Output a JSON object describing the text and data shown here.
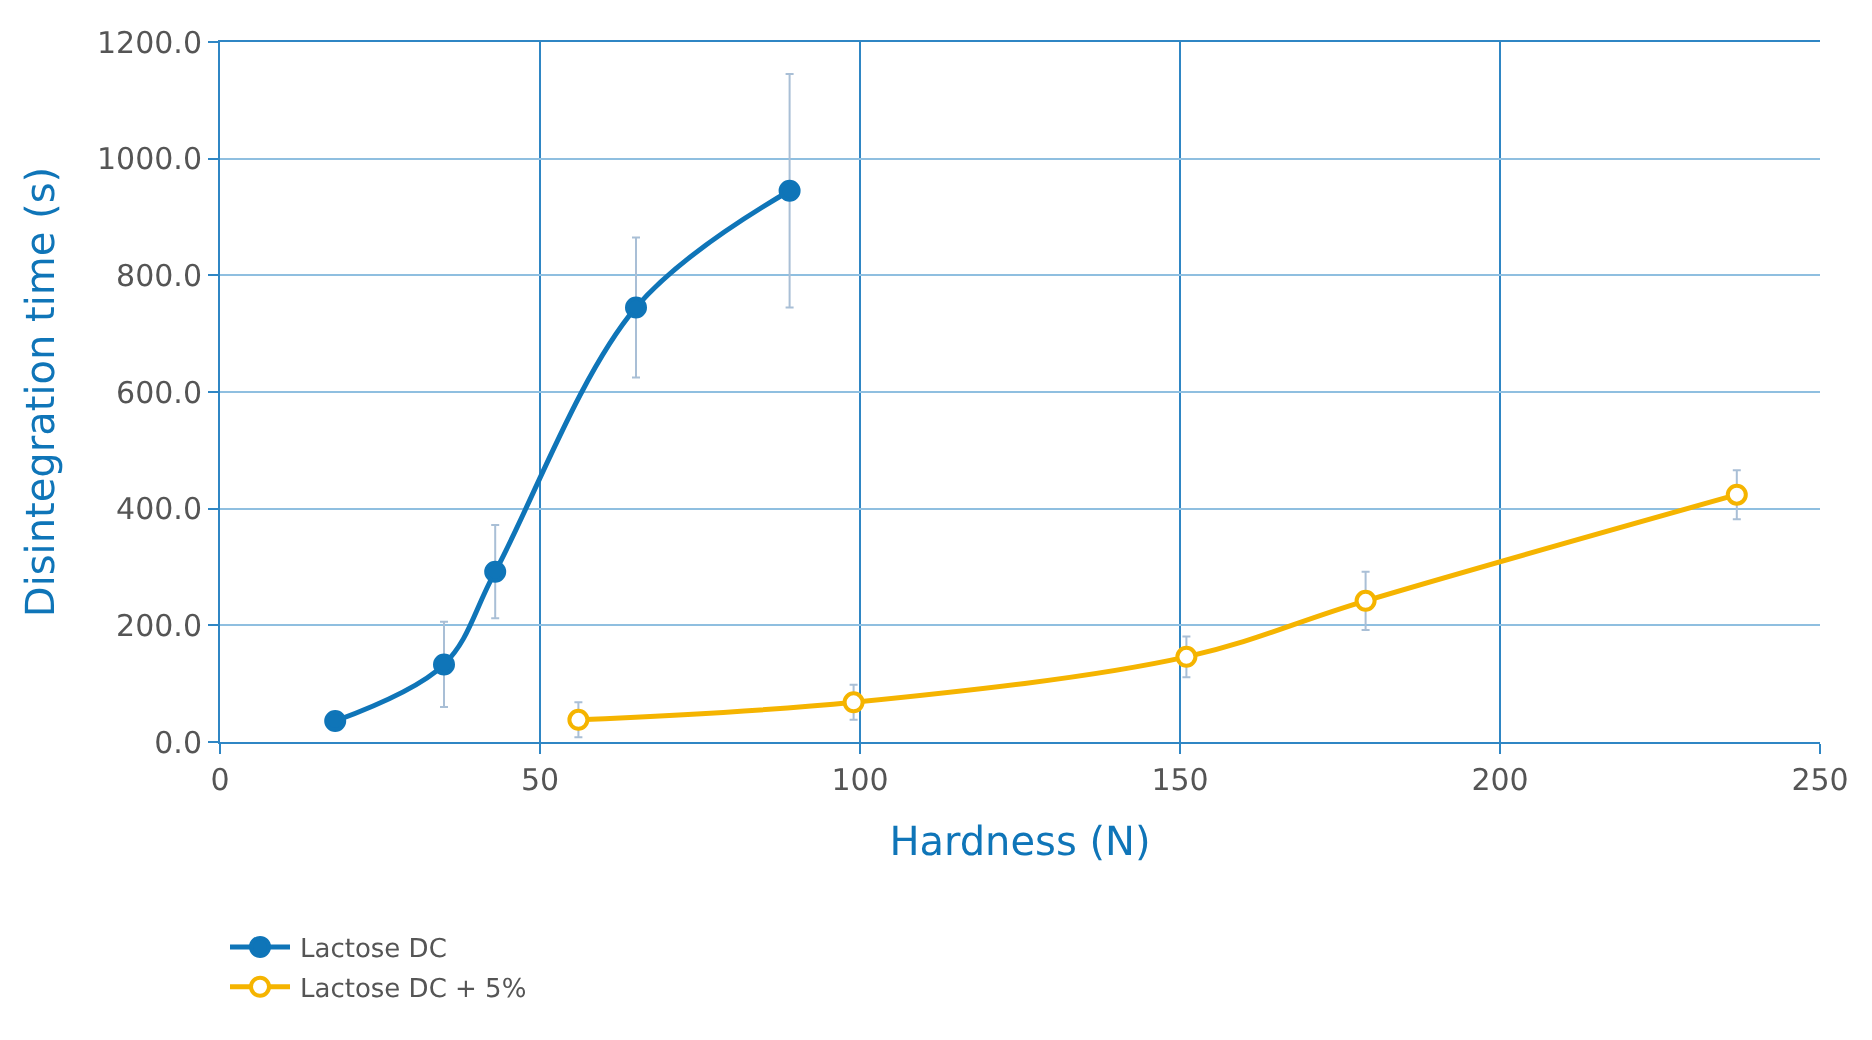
{
  "chart_data": {
    "type": "line",
    "xlabel": "Hardness (N)",
    "ylabel": "Disintegration time (s)",
    "xlim": [
      0,
      250
    ],
    "xticks": [
      0,
      50,
      100,
      150,
      200,
      250
    ],
    "ylim": [
      0,
      1200
    ],
    "yticks": [
      {
        "value": 0,
        "label": "0.0"
      },
      {
        "value": 200,
        "label": "200.0"
      },
      {
        "value": 400,
        "label": "400.0"
      },
      {
        "value": 600,
        "label": "600.0"
      },
      {
        "value": 800,
        "label": "800.0"
      },
      {
        "value": 1000,
        "label": "1000.0"
      },
      {
        "value": 1200,
        "label": "1200.0"
      }
    ],
    "grid": true,
    "legend": "bottom left",
    "series": [
      {
        "name": "Lactose DC",
        "color": "#0f75b8",
        "marker": "circle",
        "x": [
          18,
          35,
          43,
          65,
          89
        ],
        "values": [
          36,
          133,
          292,
          745,
          945
        ],
        "errors": [
          null,
          73,
          80,
          120,
          200
        ]
      },
      {
        "name": "Lactose DC + 5%",
        "color": "#f5b400",
        "marker": "circle-open",
        "x": [
          56,
          99,
          151,
          179,
          237
        ],
        "values": [
          38,
          68,
          146,
          242,
          424
        ],
        "errors": [
          30,
          30,
          35,
          50,
          42
        ]
      }
    ]
  }
}
